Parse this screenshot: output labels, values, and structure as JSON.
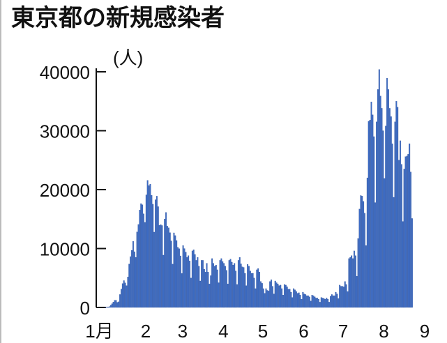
{
  "title": "東京都の新規感染者",
  "chart_data": {
    "type": "bar",
    "title": "東京都の新規感染者",
    "ylabel": "(人)",
    "xlabel": "",
    "ylim": [
      0,
      40000
    ],
    "yticks": [
      0,
      10000,
      20000,
      30000,
      40000
    ],
    "xtick_labels": [
      "1月",
      "2",
      "3",
      "4",
      "5",
      "6",
      "7",
      "8",
      "9"
    ],
    "x_start": "1月1日",
    "bar_color": "#3d6cc4",
    "grid": false,
    "values": [
      79,
      84,
      103,
      151,
      390,
      641,
      922,
      1224,
      1223,
      871,
      962,
      2198,
      3124,
      4051,
      4561,
      4172,
      3709,
      5185,
      7377,
      8638,
      9699,
      11227,
      9468,
      8503,
      12813,
      14086,
      16538,
      17631,
      17433,
      15895,
      14445,
      19113,
      21576,
      20679,
      20940,
      19045,
      17526,
      12787,
      18287,
      18891,
      17113,
      13944,
      14047,
      13911,
      8880,
      15010,
      16119,
      13805,
      13521,
      12694,
      11300,
      7353,
      12665,
      12202,
      11362,
      10220,
      9976,
      8757,
      5771,
      10492,
      9994,
      9400,
      8500,
      8800,
      7900,
      5000,
      9600,
      9800,
      9000,
      8000,
      8500,
      7000,
      4500,
      8000,
      8000,
      6500,
      6000,
      7500,
      6000,
      4000,
      5400,
      8300,
      7500,
      7000,
      7200,
      6400,
      4200,
      8000,
      8300,
      7800,
      7500,
      7000,
      6300,
      4000,
      8000,
      8200,
      7700,
      7200,
      7500,
      6200,
      3900,
      8000,
      8500,
      7400,
      6900,
      6800,
      5800,
      3700,
      7300,
      7000,
      6200,
      5800,
      5800,
      5000,
      3200,
      6400,
      6600,
      6000,
      4400,
      4100,
      3200,
      2400,
      3200,
      2900,
      2800,
      4400,
      4700,
      3600,
      2300,
      4500,
      4200,
      4000,
      3700,
      3800,
      3200,
      2100,
      3900,
      3800,
      3500,
      3100,
      3100,
      2600,
      1700,
      3200,
      3000,
      2700,
      2400,
      2500,
      2100,
      1400,
      2600,
      2300,
      2200,
      2000,
      2000,
      1800,
      1100,
      2100,
      2000,
      1800,
      1600,
      1600,
      1400,
      900,
      1700,
      1600,
      1500,
      1400,
      1600,
      1400,
      900,
      1900,
      2200,
      2000,
      2000,
      2600,
      2300,
      1500,
      3800,
      3600,
      3600,
      3500,
      4400,
      3900,
      2700,
      8300,
      8500,
      8800,
      8300,
      9600,
      8800,
      5300,
      11700,
      16700,
      19000,
      18900,
      18000,
      16000,
      10500,
      22000,
      31600,
      31800,
      34900,
      32700,
      29000,
      17800,
      31500,
      37000,
      40400,
      35900,
      33800,
      30000,
      21900,
      30800,
      38900,
      37000,
      33800,
      32400,
      27800,
      18700,
      31500,
      35000,
      34000,
      25000,
      28300,
      24300,
      14600,
      23500,
      25600,
      25700,
      26000,
      27800,
      23000,
      15100
    ]
  }
}
